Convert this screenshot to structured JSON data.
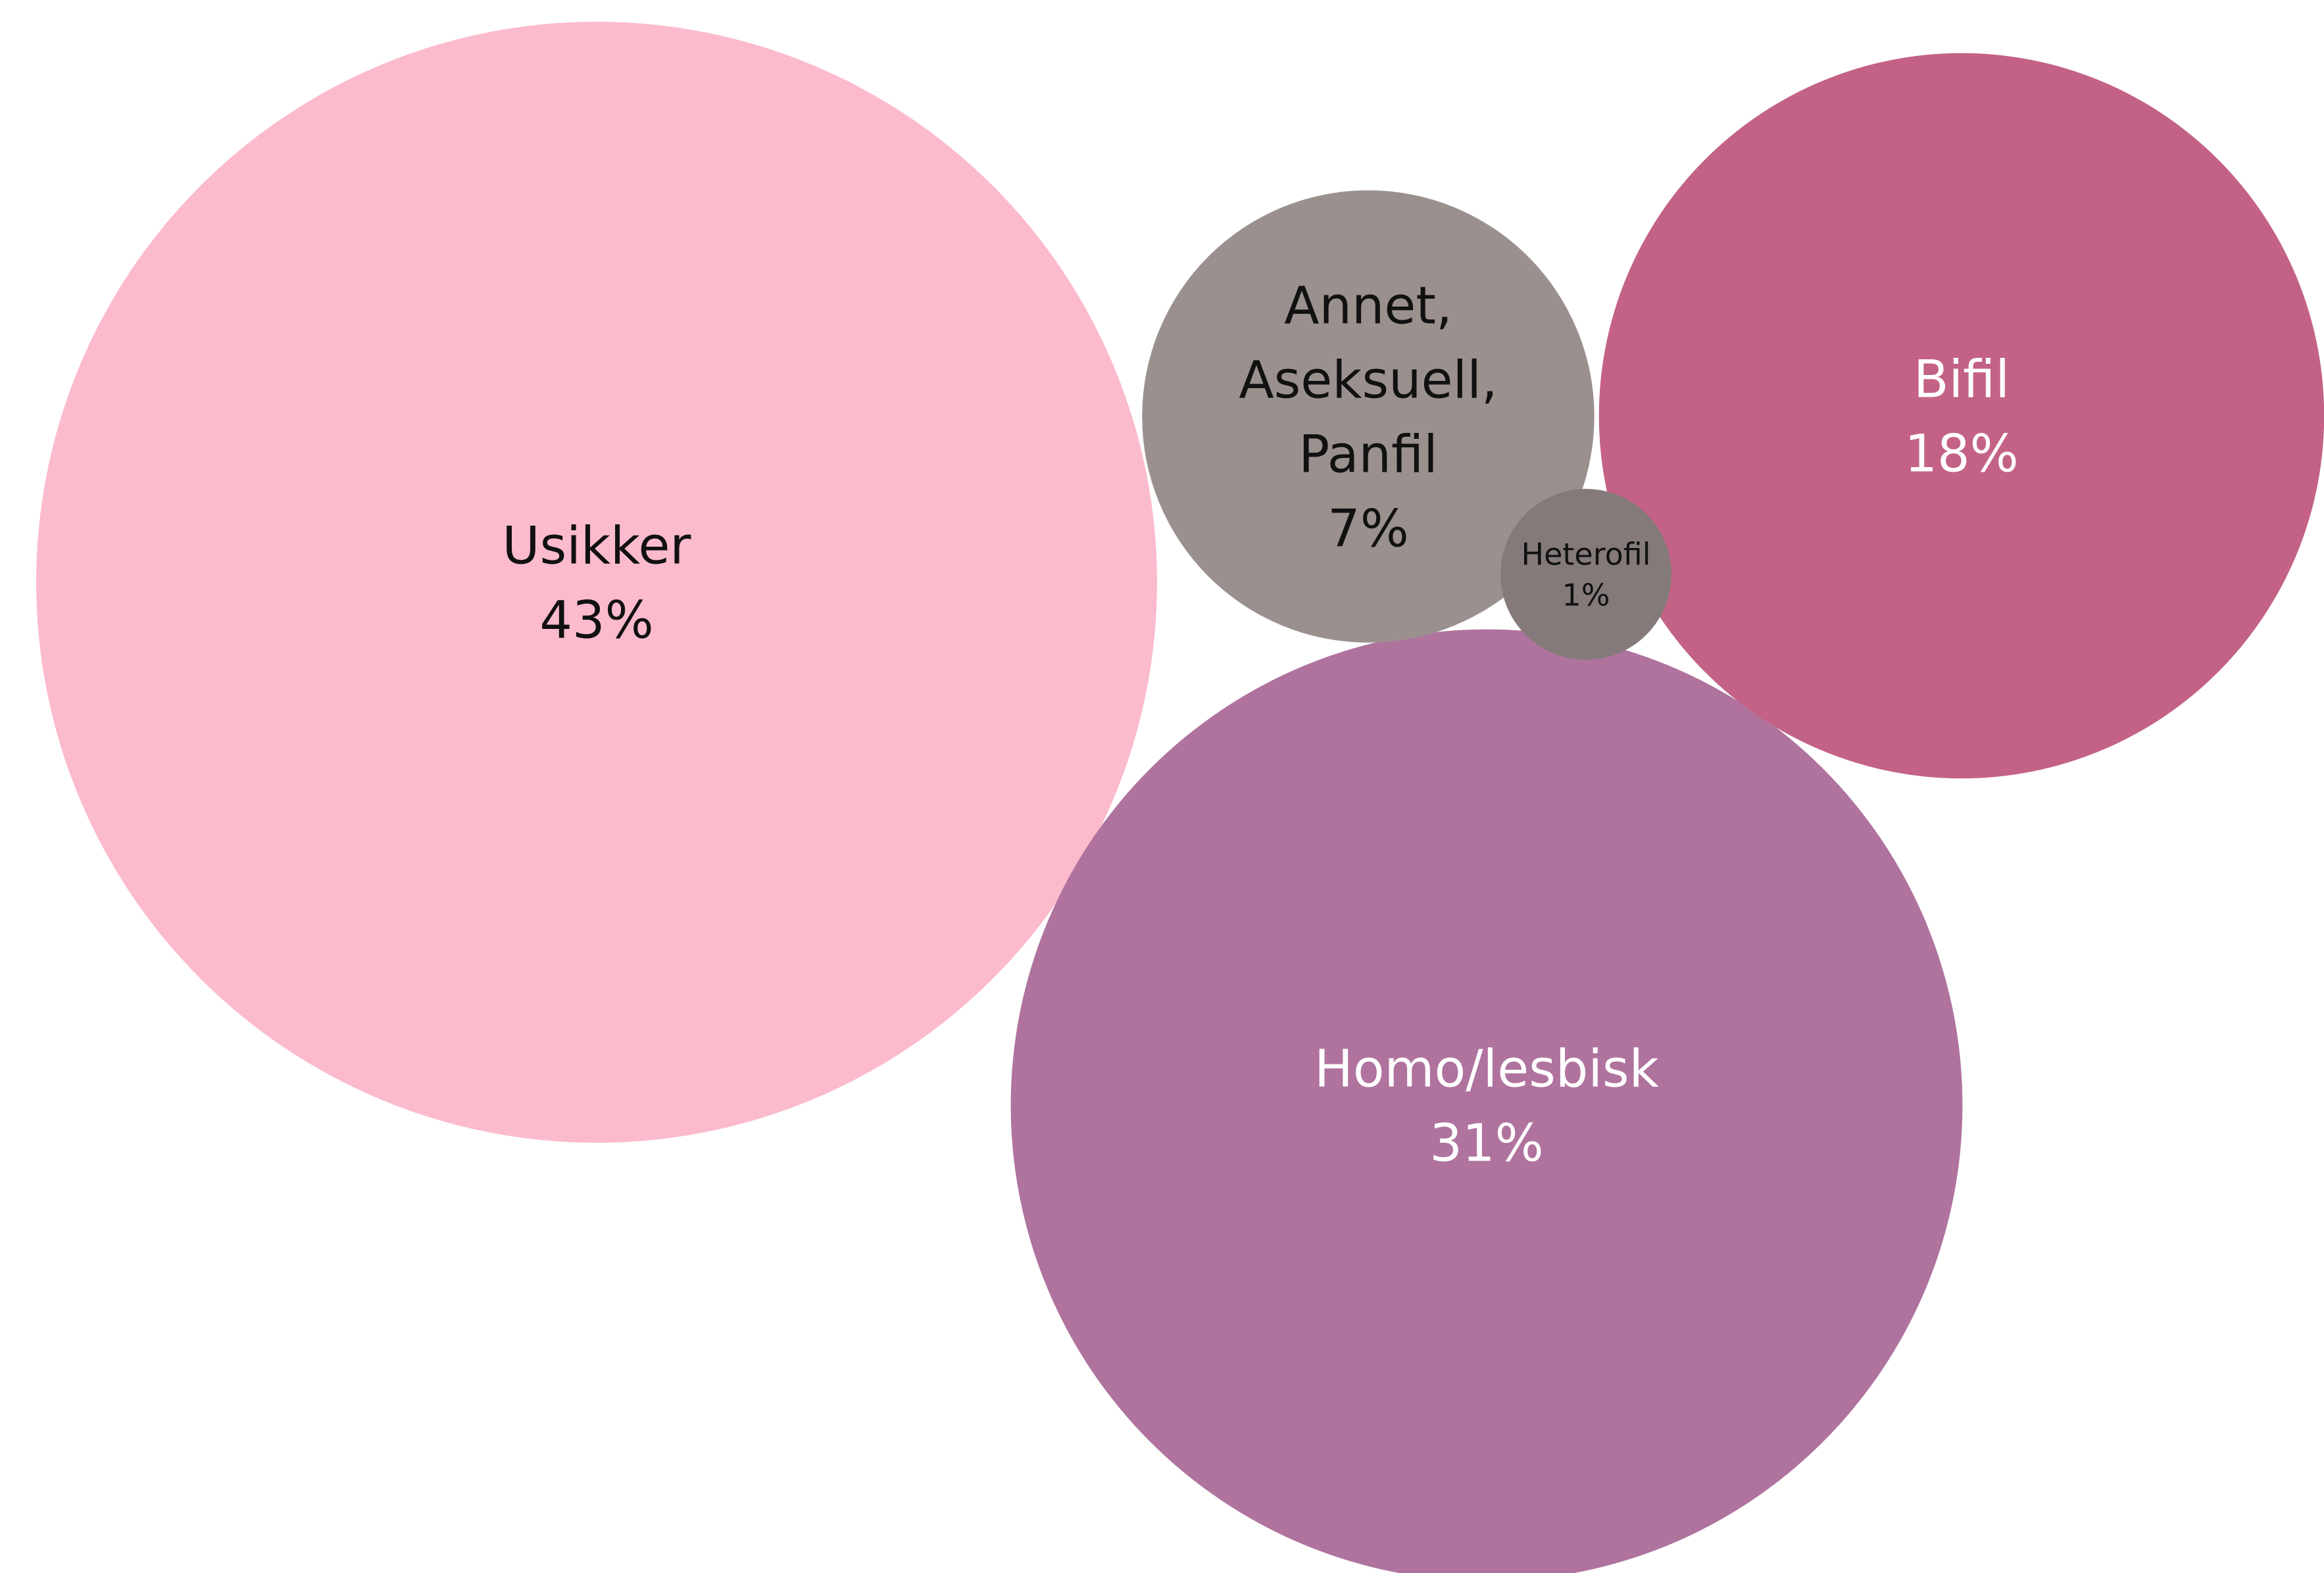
{
  "chart_data": {
    "type": "bubble",
    "title": "",
    "legend": "none",
    "series": [
      {
        "name": "Usikker",
        "label_lines": [
          "Usikker"
        ],
        "value": 43,
        "value_label": "43%",
        "color": "#fbbbcd",
        "text_color": "#111111"
      },
      {
        "name": "Homo/lesbisk",
        "label_lines": [
          "Homo/lesbisk"
        ],
        "value": 31,
        "value_label": "31%",
        "color": "#af739e",
        "text_color": "#ffffff"
      },
      {
        "name": "Bifil",
        "label_lines": [
          "Bifil"
        ],
        "value": 18,
        "value_label": "18%",
        "color": "#c36286",
        "text_color": "#ffffff"
      },
      {
        "name": "Annet, Aseksuell, Panfil",
        "label_lines": [
          "Annet,",
          "Aseksuell,",
          "Panfil"
        ],
        "value": 7,
        "value_label": "7%",
        "color": "#9a918f",
        "text_color": "#111111"
      },
      {
        "name": "Heterofil",
        "label_lines": [
          "Heterofil"
        ],
        "value": 1,
        "value_label": "1%",
        "color": "#847a7a",
        "text_color": "#111111"
      }
    ]
  }
}
